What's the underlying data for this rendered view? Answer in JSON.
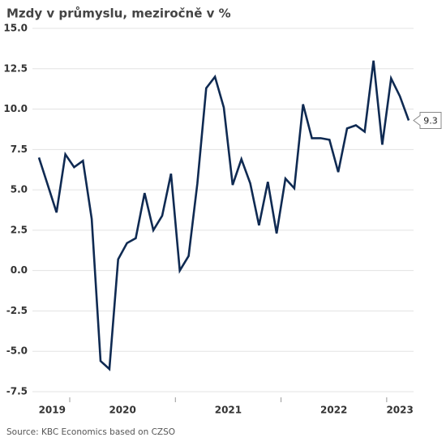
{
  "chart_data": {
    "type": "line",
    "title": "Mzdy v průmyslu, meziročně v %",
    "source": "Source: KBC Economics based on CZSO",
    "categories": [
      "2019",
      null,
      null,
      null,
      "2020",
      null,
      null,
      null,
      null,
      null,
      null,
      null,
      null,
      null,
      null,
      null,
      "2021",
      null,
      null,
      null,
      null,
      null,
      null,
      null,
      null,
      null,
      null,
      null,
      "2022",
      null,
      null,
      null,
      null,
      null,
      null,
      null,
      null,
      null,
      null,
      null,
      "2023",
      null,
      null
    ],
    "values": [
      7.0,
      5.3,
      3.6,
      7.2,
      6.4,
      6.8,
      3.2,
      -5.6,
      -6.1,
      0.7,
      1.7,
      2.0,
      4.8,
      2.5,
      3.4,
      6.0,
      0.0,
      0.9,
      5.4,
      11.3,
      12.0,
      10.1,
      5.3,
      6.9,
      5.4,
      2.8,
      5.5,
      2.3,
      5.7,
      5.1,
      10.3,
      8.2,
      8.2,
      8.1,
      6.1,
      8.8,
      9.0,
      8.6,
      13.0,
      7.8,
      11.9,
      10.8,
      9.3
    ],
    "color": "#0f2a52",
    "ylim": [
      -7.5,
      15
    ],
    "yticks": [
      -7.5,
      {
        "value": -5,
        "label": "-5.0"
      },
      -2.5,
      {
        "value": 0,
        "label": "0.0"
      },
      2.5,
      {
        "value": 5,
        "label": "5.0"
      },
      7.5,
      {
        "value": 10,
        "label": "10.0"
      },
      12.5,
      {
        "value": 15,
        "label": "15.0"
      }
    ],
    "grid": true
  }
}
